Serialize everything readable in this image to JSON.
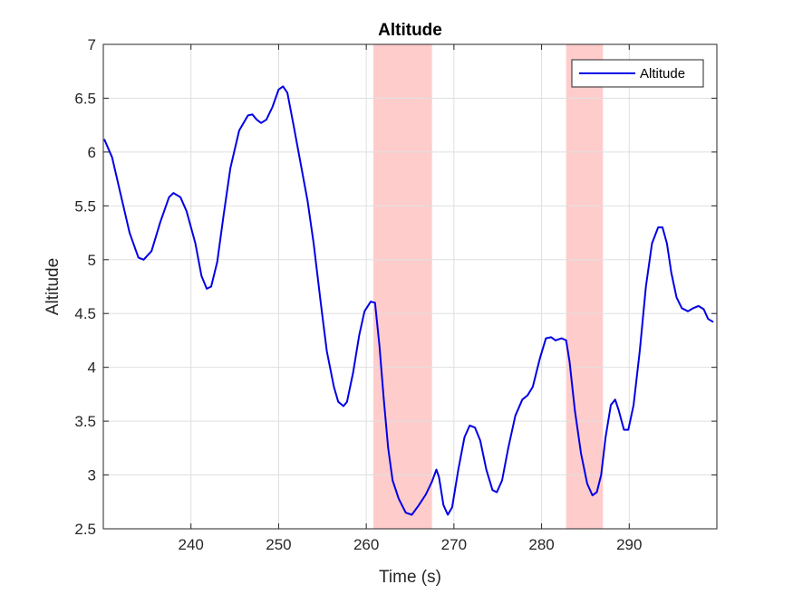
{
  "chart_data": {
    "type": "line",
    "title": "Altitude",
    "xlabel": "Time (s)",
    "ylabel": "Altitude",
    "xlim": [
      230,
      300
    ],
    "ylim": [
      2.5,
      7
    ],
    "x_ticks": [
      240,
      250,
      260,
      270,
      280,
      290
    ],
    "x_tick_labels": [
      "240",
      "250",
      "260",
      "270",
      "280",
      "290"
    ],
    "y_ticks": [
      2.5,
      3,
      3.5,
      4,
      4.5,
      5,
      5.5,
      6,
      6.5,
      7
    ],
    "y_tick_labels": [
      "2.5",
      "3",
      "3.5",
      "4",
      "4.5",
      "5",
      "5.5",
      "6",
      "6.5",
      "7"
    ],
    "grid": true,
    "legend_position": "top-right",
    "shaded_regions": [
      {
        "x_start": 260.8,
        "x_end": 267.5,
        "color": "#ffcccc"
      },
      {
        "x_start": 282.8,
        "x_end": 287.0,
        "color": "#ffcccc"
      }
    ],
    "series": [
      {
        "name": "Altitude",
        "color": "#0000e6",
        "points": [
          [
            230.1,
            6.12
          ],
          [
            231.0,
            5.95
          ],
          [
            232.0,
            5.6
          ],
          [
            233.0,
            5.25
          ],
          [
            234.0,
            5.02
          ],
          [
            234.6,
            5.0
          ],
          [
            235.5,
            5.08
          ],
          [
            236.5,
            5.35
          ],
          [
            237.5,
            5.58
          ],
          [
            238.0,
            5.62
          ],
          [
            238.8,
            5.58
          ],
          [
            239.5,
            5.45
          ],
          [
            240.5,
            5.15
          ],
          [
            241.2,
            4.85
          ],
          [
            241.8,
            4.73
          ],
          [
            242.3,
            4.75
          ],
          [
            243.0,
            4.98
          ],
          [
            243.7,
            5.4
          ],
          [
            244.5,
            5.85
          ],
          [
            245.5,
            6.2
          ],
          [
            246.5,
            6.34
          ],
          [
            247.0,
            6.35
          ],
          [
            247.5,
            6.3
          ],
          [
            248.0,
            6.27
          ],
          [
            248.6,
            6.3
          ],
          [
            249.3,
            6.42
          ],
          [
            250.0,
            6.58
          ],
          [
            250.5,
            6.61
          ],
          [
            251.0,
            6.55
          ],
          [
            251.7,
            6.25
          ],
          [
            252.5,
            5.9
          ],
          [
            253.3,
            5.55
          ],
          [
            254.0,
            5.15
          ],
          [
            254.8,
            4.6
          ],
          [
            255.5,
            4.15
          ],
          [
            256.3,
            3.82
          ],
          [
            256.8,
            3.68
          ],
          [
            257.4,
            3.64
          ],
          [
            257.8,
            3.68
          ],
          [
            258.5,
            3.95
          ],
          [
            259.2,
            4.3
          ],
          [
            259.8,
            4.52
          ],
          [
            260.5,
            4.61
          ],
          [
            261.0,
            4.6
          ],
          [
            261.5,
            4.2
          ],
          [
            262.0,
            3.7
          ],
          [
            262.5,
            3.25
          ],
          [
            263.0,
            2.95
          ],
          [
            263.7,
            2.78
          ],
          [
            264.5,
            2.65
          ],
          [
            265.2,
            2.63
          ],
          [
            266.0,
            2.72
          ],
          [
            266.8,
            2.82
          ],
          [
            267.5,
            2.94
          ],
          [
            268.0,
            3.05
          ],
          [
            268.3,
            2.98
          ],
          [
            268.8,
            2.72
          ],
          [
            269.3,
            2.63
          ],
          [
            269.8,
            2.7
          ],
          [
            270.5,
            3.05
          ],
          [
            271.2,
            3.35
          ],
          [
            271.8,
            3.46
          ],
          [
            272.4,
            3.44
          ],
          [
            273.0,
            3.32
          ],
          [
            273.7,
            3.05
          ],
          [
            274.4,
            2.86
          ],
          [
            274.9,
            2.84
          ],
          [
            275.5,
            2.95
          ],
          [
            276.2,
            3.25
          ],
          [
            277.0,
            3.55
          ],
          [
            277.8,
            3.7
          ],
          [
            278.4,
            3.74
          ],
          [
            279.0,
            3.82
          ],
          [
            279.8,
            4.08
          ],
          [
            280.5,
            4.27
          ],
          [
            281.1,
            4.28
          ],
          [
            281.6,
            4.25
          ],
          [
            282.3,
            4.27
          ],
          [
            282.8,
            4.25
          ],
          [
            283.2,
            4.05
          ],
          [
            283.8,
            3.6
          ],
          [
            284.5,
            3.2
          ],
          [
            285.2,
            2.92
          ],
          [
            285.8,
            2.81
          ],
          [
            286.3,
            2.84
          ],
          [
            286.8,
            3.0
          ],
          [
            287.3,
            3.35
          ],
          [
            287.9,
            3.65
          ],
          [
            288.4,
            3.7
          ],
          [
            288.8,
            3.6
          ],
          [
            289.4,
            3.42
          ],
          [
            289.9,
            3.42
          ],
          [
            290.5,
            3.65
          ],
          [
            291.2,
            4.15
          ],
          [
            291.9,
            4.75
          ],
          [
            292.6,
            5.15
          ],
          [
            293.3,
            5.3
          ],
          [
            293.8,
            5.3
          ],
          [
            294.3,
            5.15
          ],
          [
            294.8,
            4.88
          ],
          [
            295.4,
            4.65
          ],
          [
            296.0,
            4.55
          ],
          [
            296.7,
            4.52
          ],
          [
            297.3,
            4.55
          ],
          [
            297.9,
            4.57
          ],
          [
            298.5,
            4.54
          ],
          [
            299.0,
            4.45
          ],
          [
            299.6,
            4.42
          ]
        ]
      }
    ]
  }
}
